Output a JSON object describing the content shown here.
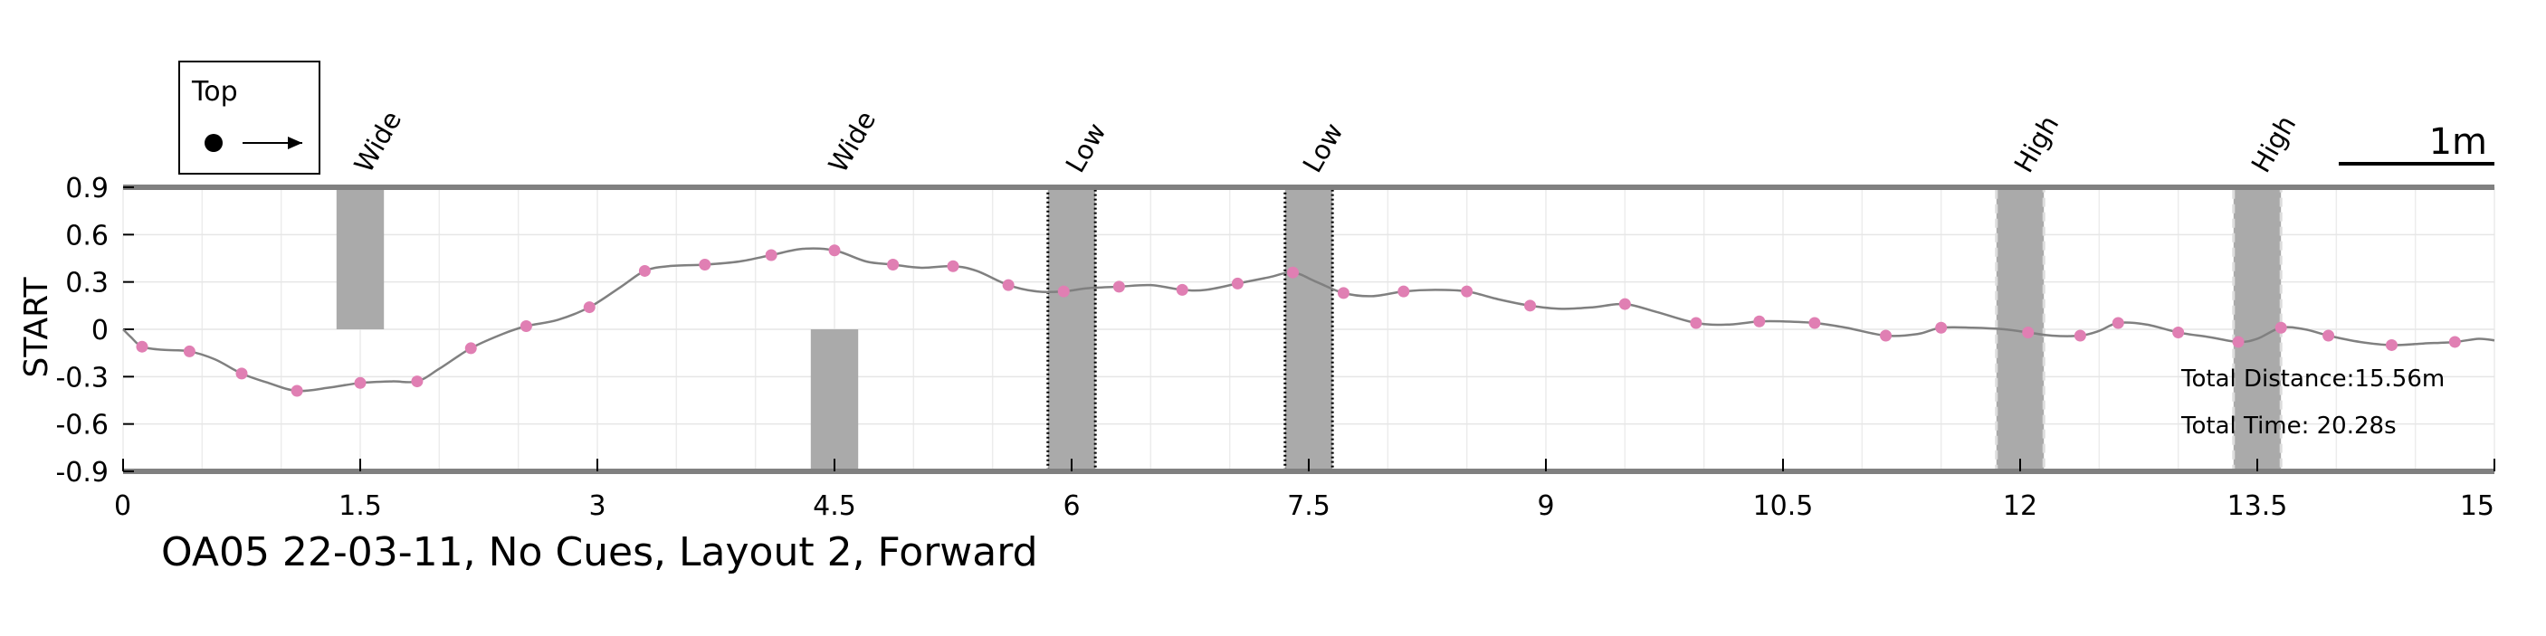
{
  "chart_data": {
    "type": "line",
    "title": "OA05 22-03-11, No Cues, Layout 2, Forward",
    "ylabel": "START",
    "xlabel": "",
    "xlim": [
      0,
      15
    ],
    "ylim": [
      -0.9,
      0.9
    ],
    "x_ticks": [
      0,
      1.5,
      3,
      4.5,
      6,
      7.5,
      9,
      10.5,
      12,
      13.5,
      15
    ],
    "x_tick_labels": [
      "0",
      "1.5",
      "3",
      "4.5",
      "6",
      "7.5",
      "9",
      "10.5",
      "12",
      "13.5",
      "15"
    ],
    "y_ticks": [
      0.9,
      0.6,
      0.3,
      0,
      -0.3,
      -0.6,
      -0.9
    ],
    "y_tick_labels": [
      "0.9",
      "0.6",
      "0.3",
      "0",
      "-0.3",
      "-0.6",
      "-0.9"
    ],
    "grid": true,
    "line_color": "#808080",
    "marker_color": "#e07fb3",
    "obstacle_color": "#aaaaaa",
    "path": [
      [
        0.0,
        0.0
      ],
      [
        0.05,
        -0.05
      ],
      [
        0.12,
        -0.11
      ],
      [
        0.25,
        -0.13
      ],
      [
        0.42,
        -0.14
      ],
      [
        0.58,
        -0.19
      ],
      [
        0.75,
        -0.28
      ],
      [
        0.92,
        -0.34
      ],
      [
        1.1,
        -0.39
      ],
      [
        1.3,
        -0.37
      ],
      [
        1.5,
        -0.34
      ],
      [
        1.7,
        -0.33
      ],
      [
        1.86,
        -0.33
      ],
      [
        2.0,
        -0.25
      ],
      [
        2.2,
        -0.12
      ],
      [
        2.4,
        -0.03
      ],
      [
        2.55,
        0.02
      ],
      [
        2.75,
        0.06
      ],
      [
        2.95,
        0.14
      ],
      [
        3.15,
        0.27
      ],
      [
        3.3,
        0.37
      ],
      [
        3.45,
        0.4
      ],
      [
        3.68,
        0.41
      ],
      [
        3.9,
        0.43
      ],
      [
        4.1,
        0.47
      ],
      [
        4.3,
        0.51
      ],
      [
        4.5,
        0.5
      ],
      [
        4.7,
        0.43
      ],
      [
        4.87,
        0.41
      ],
      [
        5.05,
        0.39
      ],
      [
        5.25,
        0.4
      ],
      [
        5.4,
        0.37
      ],
      [
        5.6,
        0.28
      ],
      [
        5.78,
        0.24
      ],
      [
        5.95,
        0.24
      ],
      [
        6.1,
        0.26
      ],
      [
        6.3,
        0.27
      ],
      [
        6.5,
        0.28
      ],
      [
        6.7,
        0.25
      ],
      [
        6.85,
        0.25
      ],
      [
        7.05,
        0.29
      ],
      [
        7.25,
        0.33
      ],
      [
        7.4,
        0.36
      ],
      [
        7.55,
        0.3
      ],
      [
        7.72,
        0.23
      ],
      [
        7.9,
        0.21
      ],
      [
        8.1,
        0.24
      ],
      [
        8.3,
        0.25
      ],
      [
        8.5,
        0.24
      ],
      [
        8.7,
        0.19
      ],
      [
        8.9,
        0.15
      ],
      [
        9.1,
        0.13
      ],
      [
        9.3,
        0.14
      ],
      [
        9.5,
        0.16
      ],
      [
        9.7,
        0.11
      ],
      [
        9.95,
        0.04
      ],
      [
        10.15,
        0.03
      ],
      [
        10.35,
        0.05
      ],
      [
        10.5,
        0.05
      ],
      [
        10.7,
        0.04
      ],
      [
        10.9,
        0.01
      ],
      [
        11.15,
        -0.04
      ],
      [
        11.35,
        -0.03
      ],
      [
        11.5,
        0.01
      ],
      [
        11.7,
        0.01
      ],
      [
        11.9,
        0.0
      ],
      [
        12.05,
        -0.02
      ],
      [
        12.2,
        -0.04
      ],
      [
        12.38,
        -0.04
      ],
      [
        12.5,
        -0.01
      ],
      [
        12.62,
        0.04
      ],
      [
        12.8,
        0.03
      ],
      [
        13.0,
        -0.02
      ],
      [
        13.2,
        -0.05
      ],
      [
        13.38,
        -0.08
      ],
      [
        13.5,
        -0.06
      ],
      [
        13.65,
        0.01
      ],
      [
        13.8,
        0.0
      ],
      [
        13.95,
        -0.04
      ],
      [
        14.15,
        -0.08
      ],
      [
        14.35,
        -0.1
      ],
      [
        14.55,
        -0.09
      ],
      [
        14.75,
        -0.08
      ],
      [
        14.9,
        -0.06
      ],
      [
        15.0,
        -0.07
      ]
    ],
    "markers": [
      [
        0.12,
        -0.11
      ],
      [
        0.42,
        -0.14
      ],
      [
        0.75,
        -0.28
      ],
      [
        1.1,
        -0.39
      ],
      [
        1.5,
        -0.34
      ],
      [
        1.86,
        -0.33
      ],
      [
        2.2,
        -0.12
      ],
      [
        2.55,
        0.02
      ],
      [
        2.95,
        0.14
      ],
      [
        3.3,
        0.37
      ],
      [
        3.68,
        0.41
      ],
      [
        4.1,
        0.47
      ],
      [
        4.5,
        0.5
      ],
      [
        4.87,
        0.41
      ],
      [
        5.25,
        0.4
      ],
      [
        5.6,
        0.28
      ],
      [
        5.95,
        0.24
      ],
      [
        6.3,
        0.27
      ],
      [
        6.7,
        0.25
      ],
      [
        7.05,
        0.29
      ],
      [
        7.4,
        0.36
      ],
      [
        7.72,
        0.23
      ],
      [
        8.1,
        0.24
      ],
      [
        8.5,
        0.24
      ],
      [
        8.9,
        0.15
      ],
      [
        9.5,
        0.16
      ],
      [
        9.95,
        0.04
      ],
      [
        10.35,
        0.05
      ],
      [
        10.7,
        0.04
      ],
      [
        11.15,
        -0.04
      ],
      [
        11.5,
        0.01
      ],
      [
        12.05,
        -0.02
      ],
      [
        12.38,
        -0.04
      ],
      [
        12.62,
        0.04
      ],
      [
        13.0,
        -0.02
      ],
      [
        13.38,
        -0.08
      ],
      [
        13.65,
        0.01
      ],
      [
        13.95,
        -0.04
      ],
      [
        14.35,
        -0.1
      ],
      [
        14.75,
        -0.08
      ]
    ],
    "obstacles": [
      {
        "label": "Wide",
        "x0": 1.35,
        "x1": 1.65,
        "y0": 0.0,
        "y1": 0.9,
        "style": "solid"
      },
      {
        "label": "Wide",
        "x0": 4.35,
        "x1": 4.65,
        "y0": -0.9,
        "y1": 0.0,
        "style": "solid"
      },
      {
        "label": "Low",
        "x0": 5.85,
        "x1": 6.15,
        "y0": -0.9,
        "y1": 0.9,
        "style": "dotted"
      },
      {
        "label": "Low",
        "x0": 7.35,
        "x1": 7.65,
        "y0": -0.9,
        "y1": 0.9,
        "style": "dotted"
      },
      {
        "label": "High",
        "x0": 11.85,
        "x1": 12.15,
        "y0": -0.9,
        "y1": 0.9,
        "style": "dashed"
      },
      {
        "label": "High",
        "x0": 13.35,
        "x1": 13.65,
        "y0": -0.9,
        "y1": 0.9,
        "style": "dashed"
      }
    ],
    "legend": {
      "label": "Top",
      "placement": "top-left"
    },
    "scale_bar": {
      "label": "1m",
      "length": 1.0,
      "placement": "top-right"
    },
    "annotations": {
      "total_distance": "Total Distance:15.56m",
      "total_time": "Total Time: 20.28s"
    }
  }
}
